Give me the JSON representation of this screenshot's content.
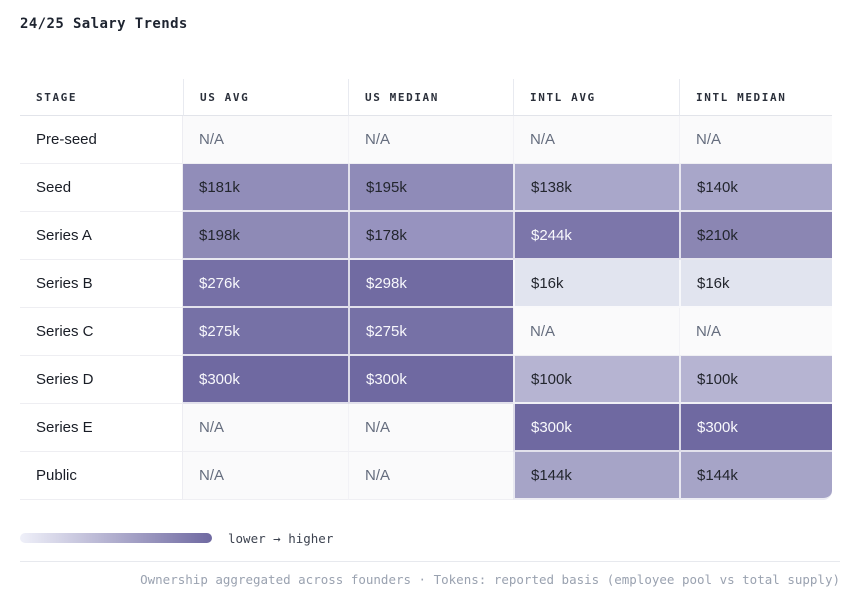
{
  "title": "24/25 Salary Trends",
  "table": {
    "columns": [
      "STAGE",
      "US AVG",
      "US MEDIAN",
      "INTL AVG",
      "INTL MEDIAN"
    ],
    "rows": [
      {
        "stage": "Pre-seed",
        "cells": [
          {
            "text": "N/A",
            "na": true
          },
          {
            "text": "N/A",
            "na": true
          },
          {
            "text": "N/A",
            "na": true
          },
          {
            "text": "N/A",
            "na": true
          }
        ]
      },
      {
        "stage": "Seed",
        "cells": [
          {
            "text": "$181k",
            "bg": "#918db9",
            "fg": "#23262e"
          },
          {
            "text": "$195k",
            "bg": "#8f8bb8",
            "fg": "#23262e"
          },
          {
            "text": "$138k",
            "bg": "#a9a7ca",
            "fg": "#23262e"
          },
          {
            "text": "$140k",
            "bg": "#a8a6c9",
            "fg": "#23262e"
          }
        ]
      },
      {
        "stage": "Series A",
        "cells": [
          {
            "text": "$198k",
            "bg": "#8e8ab6",
            "fg": "#23262e"
          },
          {
            "text": "$178k",
            "bg": "#9793bf",
            "fg": "#23262e"
          },
          {
            "text": "$244k",
            "bg": "#7c76aa",
            "fg": "#f8f8fc"
          },
          {
            "text": "$210k",
            "bg": "#8b86b3",
            "fg": "#23262e"
          }
        ]
      },
      {
        "stage": "Series B",
        "cells": [
          {
            "text": "$276k",
            "bg": "#7670a6",
            "fg": "#f8f8fc"
          },
          {
            "text": "$298k",
            "bg": "#716ba2",
            "fg": "#f8f8fc"
          },
          {
            "text": "$16k",
            "bg": "#e1e4ef",
            "fg": "#23262e"
          },
          {
            "text": "$16k",
            "bg": "#e1e4ef",
            "fg": "#23262e"
          }
        ]
      },
      {
        "stage": "Series C",
        "cells": [
          {
            "text": "$275k",
            "bg": "#7671a6",
            "fg": "#f8f8fc"
          },
          {
            "text": "$275k",
            "bg": "#7671a6",
            "fg": "#f8f8fc"
          },
          {
            "text": "N/A",
            "na": true
          },
          {
            "text": "N/A",
            "na": true
          }
        ]
      },
      {
        "stage": "Series D",
        "cells": [
          {
            "text": "$300k",
            "bg": "#6f69a1",
            "fg": "#f8f8fc"
          },
          {
            "text": "$300k",
            "bg": "#6f69a1",
            "fg": "#f8f8fc"
          },
          {
            "text": "$100k",
            "bg": "#b6b4d2",
            "fg": "#23262e"
          },
          {
            "text": "$100k",
            "bg": "#b6b4d2",
            "fg": "#23262e"
          }
        ]
      },
      {
        "stage": "Series E",
        "cells": [
          {
            "text": "N/A",
            "na": true
          },
          {
            "text": "N/A",
            "na": true
          },
          {
            "text": "$300k",
            "bg": "#6f69a1",
            "fg": "#f8f8fc"
          },
          {
            "text": "$300k",
            "bg": "#6f69a1",
            "fg": "#f8f8fc"
          }
        ]
      },
      {
        "stage": "Public",
        "cells": [
          {
            "text": "N/A",
            "na": true
          },
          {
            "text": "N/A",
            "na": true
          },
          {
            "text": "$144k",
            "bg": "#a6a4c7",
            "fg": "#23262e"
          },
          {
            "text": "$144k",
            "bg": "#a6a4c7",
            "fg": "#23262e"
          }
        ]
      }
    ]
  },
  "legend": {
    "label": "lower → higher",
    "gradient_from": "#eff0f9",
    "gradient_to": "#6f69a1"
  },
  "footer": {
    "note": "Ownership aggregated across founders · Tokens: reported basis (employee pool vs total supply)"
  },
  "chart_data": {
    "type": "heatmap",
    "title": "24/25 Salary Trends",
    "rows": [
      "Pre-seed",
      "Seed",
      "Series A",
      "Series B",
      "Series C",
      "Series D",
      "Series E",
      "Public"
    ],
    "columns": [
      "US AVG",
      "US MEDIAN",
      "INTL AVG",
      "INTL MEDIAN"
    ],
    "values_k_usd": [
      [
        null,
        null,
        null,
        null
      ],
      [
        181,
        195,
        138,
        140
      ],
      [
        198,
        178,
        244,
        210
      ],
      [
        276,
        298,
        16,
        16
      ],
      [
        275,
        275,
        null,
        null
      ],
      [
        300,
        300,
        100,
        100
      ],
      [
        null,
        null,
        300,
        300
      ],
      [
        null,
        null,
        144,
        144
      ]
    ],
    "legend": "lower → higher",
    "color_scale": {
      "low": "#eff0f9",
      "high": "#6f69a1"
    },
    "footnote": "Ownership aggregated across founders · Tokens: reported basis (employee pool vs total supply)"
  }
}
